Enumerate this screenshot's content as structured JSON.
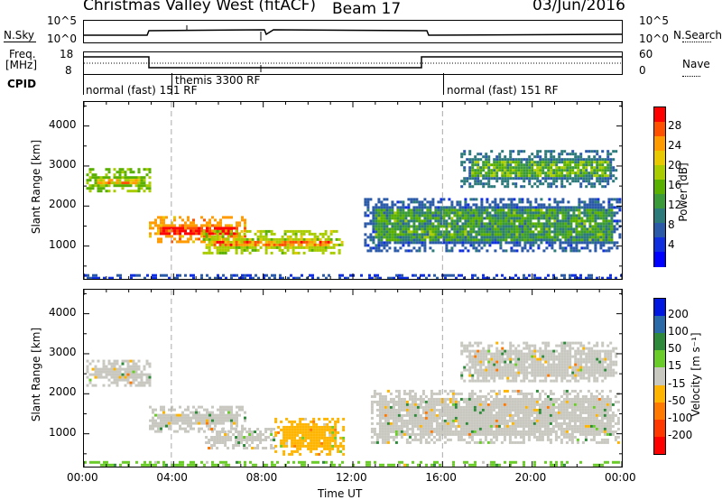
{
  "header": {
    "station": "Christmas Valley West (fitACF)",
    "beam": "Beam 17",
    "date": "03/Jun/2016"
  },
  "nsky_panel": {
    "left_label": "N.Sky",
    "left_ticks": [
      "10^5",
      "10^0"
    ],
    "right_ticks": [
      "10^5",
      "10^0"
    ],
    "right_label": "N.Search"
  },
  "freq_panel": {
    "left_label_1": "Freq.",
    "left_label_2": "[MHz]",
    "left_ticks": [
      "18",
      "8"
    ],
    "right_ticks": [
      "60",
      "0"
    ],
    "right_label": "Nave"
  },
  "cpid": {
    "label": "CPID",
    "modes": [
      {
        "text": "normal (fast) 151 RF",
        "start_hour": 0
      },
      {
        "text": "themis 3300 RF",
        "start_hour": 3.9
      },
      {
        "text": "normal (fast) 151 RF",
        "start_hour": 16
      }
    ]
  },
  "chart_data": [
    {
      "type": "heatmap",
      "title": "Power",
      "ylabel": "Slant Range [km]",
      "xlabel": "",
      "colorbar_label": "Power [dB]",
      "colorbar_ticks": [
        "28",
        "24",
        "20",
        "16",
        "12",
        "8",
        "4"
      ],
      "colorbar_colors": [
        "#ff0000",
        "#ff5000",
        "#ff9a00",
        "#e8c800",
        "#a8cc00",
        "#5ab000",
        "#3a9a3a",
        "#2c7a7a",
        "#2a5aa8",
        "#1030e0",
        "#0000ff"
      ],
      "ylim": [
        180,
        4600
      ],
      "yticks": [
        "4000",
        "3000",
        "2000",
        "1000"
      ],
      "xlim_hours": [
        0,
        24
      ],
      "regions": [
        {
          "t0": 0.1,
          "t1": 2.9,
          "r0": 2350,
          "r1": 2950,
          "power_db": 22
        },
        {
          "t0": 2.9,
          "t1": 7.2,
          "r0": 1100,
          "r1": 1750,
          "power_db": 30
        },
        {
          "t0": 5.3,
          "t1": 11.5,
          "r0": 800,
          "r1": 1400,
          "power_db": 24
        },
        {
          "t0": 12.5,
          "t1": 23.9,
          "r0": 900,
          "r1": 2200,
          "power_db": 12
        },
        {
          "t0": 16.8,
          "t1": 23.8,
          "r0": 2500,
          "r1": 3400,
          "power_db": 14
        },
        {
          "t0": 0.0,
          "t1": 24.0,
          "r0": 200,
          "r1": 300,
          "power_db": 10
        }
      ]
    },
    {
      "type": "heatmap",
      "title": "Velocity",
      "ylabel": "Slant Range [km]",
      "xlabel": "Time UT",
      "xticks": [
        "00:00",
        "04:00",
        "08:00",
        "12:00",
        "16:00",
        "20:00",
        "00:00"
      ],
      "colorbar_label": "Velocity [m s⁻¹]",
      "colorbar_ticks": [
        "200",
        "100",
        "50",
        "15",
        "-15",
        "-50",
        "-100",
        "-200"
      ],
      "colorbar_colors": [
        "#0018e0",
        "#2a6aa8",
        "#2e8a3a",
        "#6acc28",
        "#c8c8c0",
        "#ffb400",
        "#ff7800",
        "#ff3800",
        "#ff0000"
      ],
      "ylim": [
        180,
        4600
      ],
      "yticks": [
        "4000",
        "3000",
        "2000",
        "1000"
      ],
      "xlim_hours": [
        0,
        24
      ],
      "regions": [
        {
          "t0": 0.1,
          "t1": 2.9,
          "r0": 2200,
          "r1": 2850,
          "velocity": 0
        },
        {
          "t0": 2.9,
          "t1": 7.2,
          "r0": 1050,
          "r1": 1700,
          "velocity": 0
        },
        {
          "t0": 5.4,
          "t1": 8.5,
          "r0": 650,
          "r1": 1150,
          "velocity": 0
        },
        {
          "t0": 8.5,
          "t1": 11.6,
          "r0": 500,
          "r1": 1400,
          "velocity": -30
        },
        {
          "t0": 12.8,
          "t1": 23.8,
          "r0": 800,
          "r1": 2100,
          "velocity": 0
        },
        {
          "t0": 16.8,
          "t1": 23.8,
          "r0": 2300,
          "r1": 3300,
          "velocity": 0
        },
        {
          "t0": 0.0,
          "t1": 24.0,
          "r0": 200,
          "r1": 320,
          "velocity": 20
        }
      ]
    }
  ]
}
